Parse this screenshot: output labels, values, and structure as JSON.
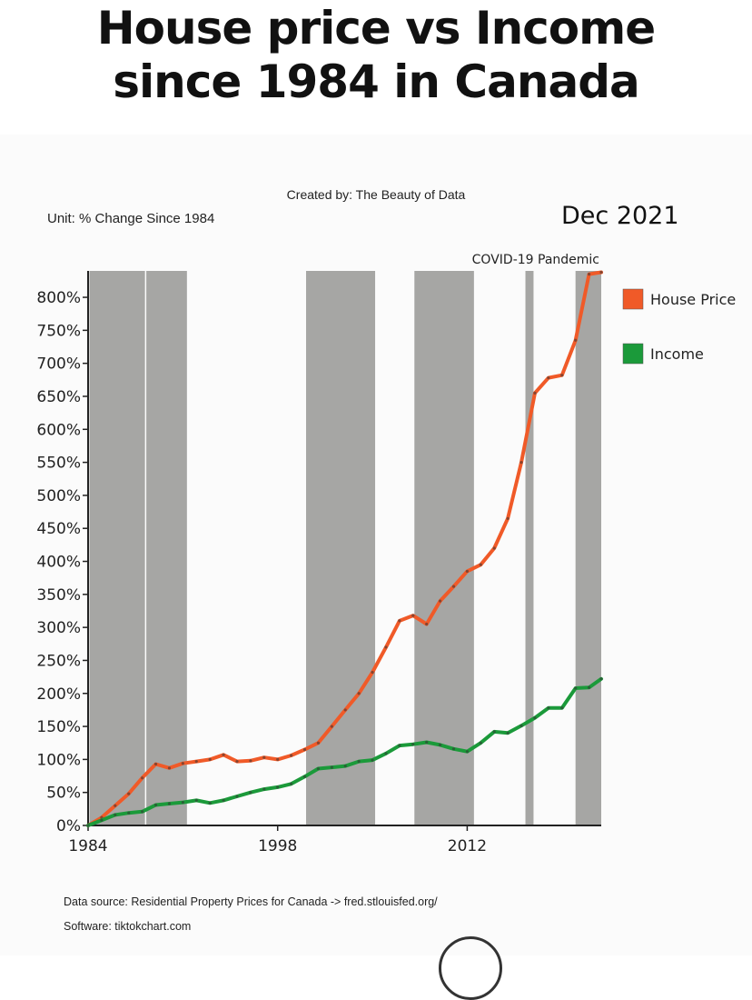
{
  "headline": {
    "line1": "House price vs Income",
    "line2": "since 1984 in Canada"
  },
  "credit": "Created by: The Beauty of Data",
  "unit_label": "Unit: % Change Since 1984",
  "date_label": "Dec 2021",
  "footer": {
    "source": "Data source: Residential Property Prices for Canada -> fred.stlouisfed.org/",
    "software": "Software: tiktokchart.com"
  },
  "chart_data": {
    "type": "line",
    "xlim": [
      1984,
      2021.9
    ],
    "ylim": [
      0,
      820
    ],
    "x_ticks": [
      1984,
      1998,
      2012
    ],
    "y_ticks": [
      0,
      50,
      100,
      150,
      200,
      250,
      300,
      350,
      400,
      450,
      500,
      550,
      600,
      650,
      700,
      750,
      800
    ],
    "y_tick_suffix": "%",
    "legend_position": "right",
    "shaded_periods": [
      [
        1984.1,
        1988.2
      ],
      [
        1988.3,
        1991.3
      ],
      [
        2000.1,
        2005.2
      ],
      [
        2008.1,
        2012.5
      ],
      [
        2016.3,
        2016.9
      ],
      [
        2020.0,
        2021.9
      ]
    ],
    "annotation": "COVID-19 Pandemic",
    "series": [
      {
        "name": "House Price",
        "color": "#f05a28",
        "x": [
          1984,
          1985,
          1986,
          1987,
          1988,
          1989,
          1990,
          1991,
          1992,
          1993,
          1994,
          1995,
          1996,
          1997,
          1998,
          1999,
          2000,
          2001,
          2002,
          2003,
          2004,
          2005,
          2006,
          2007,
          2008,
          2009,
          2010,
          2011,
          2012,
          2013,
          2014,
          2015,
          2016,
          2017,
          2018,
          2019,
          2020,
          2021,
          2021.9
        ],
        "values": [
          0,
          12,
          30,
          48,
          72,
          93,
          87,
          94,
          97,
          100,
          107,
          97,
          98,
          103,
          100,
          106,
          115,
          125,
          150,
          175,
          200,
          232,
          270,
          310,
          318,
          305,
          340,
          362,
          385,
          395,
          420,
          465,
          550,
          655,
          678,
          682,
          735,
          835,
          838
        ]
      },
      {
        "name": "Income",
        "color": "#1b9a3a",
        "x": [
          1984,
          1985,
          1986,
          1987,
          1988,
          1989,
          1990,
          1991,
          1992,
          1993,
          1994,
          1995,
          1996,
          1997,
          1998,
          1999,
          2000,
          2001,
          2002,
          2003,
          2004,
          2005,
          2006,
          2007,
          2008,
          2009,
          2010,
          2011,
          2012,
          2013,
          2014,
          2015,
          2016,
          2017,
          2018,
          2019,
          2020,
          2021,
          2021.9
        ],
        "values": [
          0,
          8,
          16,
          19,
          21,
          31,
          33,
          35,
          38,
          34,
          38,
          44,
          50,
          55,
          58,
          63,
          74,
          86,
          88,
          90,
          97,
          99,
          109,
          121,
          123,
          126,
          122,
          116,
          112,
          125,
          142,
          140,
          151,
          163,
          178,
          178,
          208,
          209,
          222
        ]
      }
    ]
  }
}
